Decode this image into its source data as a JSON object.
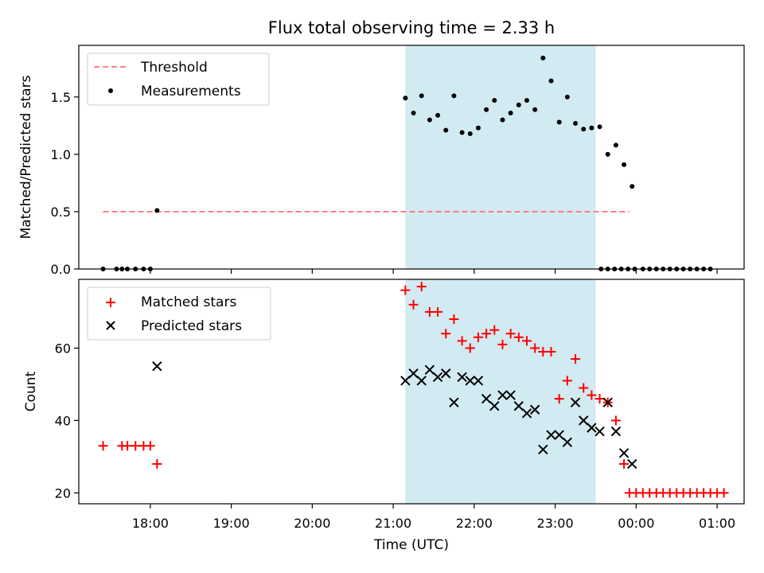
{
  "chart_data": [
    {
      "type": "scatter",
      "title": "Flux total observing time = 2.33 h",
      "xlabel": "",
      "ylabel": "Matched/Predicted stars",
      "xlim": [
        "17:07",
        "01:20"
      ],
      "ylim": [
        0,
        1.95
      ],
      "yticks": [
        "0.0",
        "0.5",
        "1.0",
        "1.5"
      ],
      "highlight_span": [
        "21:09",
        "23:30"
      ],
      "colors": {
        "span": "#add8e6",
        "threshold": "#ff8080",
        "points": "#000000"
      },
      "legend": {
        "placement": "upper-left",
        "entries": [
          "Threshold",
          "Measurements"
        ]
      },
      "threshold": {
        "name": "Threshold",
        "x_range": [
          "17:25",
          "23:55"
        ],
        "y": 0.5
      },
      "series": [
        {
          "name": "Measurements",
          "points": [
            [
              "17:25",
              0.0
            ],
            [
              "17:35",
              0.0
            ],
            [
              "17:39",
              0.0
            ],
            [
              "17:43",
              0.0
            ],
            [
              "17:49",
              0.0
            ],
            [
              "17:55",
              0.0
            ],
            [
              "18:00",
              0.0
            ],
            [
              "18:05",
              0.51
            ],
            [
              "21:09",
              1.49
            ],
            [
              "21:15",
              1.36
            ],
            [
              "21:21",
              1.51
            ],
            [
              "21:27",
              1.3
            ],
            [
              "21:33",
              1.34
            ],
            [
              "21:39",
              1.21
            ],
            [
              "21:45",
              1.51
            ],
            [
              "21:51",
              1.19
            ],
            [
              "21:57",
              1.18
            ],
            [
              "22:03",
              1.23
            ],
            [
              "22:09",
              1.39
            ],
            [
              "22:15",
              1.47
            ],
            [
              "22:21",
              1.3
            ],
            [
              "22:27",
              1.36
            ],
            [
              "22:33",
              1.43
            ],
            [
              "22:39",
              1.47
            ],
            [
              "22:45",
              1.39
            ],
            [
              "22:51",
              1.84
            ],
            [
              "22:57",
              1.64
            ],
            [
              "23:03",
              1.28
            ],
            [
              "23:09",
              1.5
            ],
            [
              "23:15",
              1.27
            ],
            [
              "23:21",
              1.22
            ],
            [
              "23:27",
              1.23
            ],
            [
              "23:33",
              1.24
            ],
            [
              "23:39",
              1.0
            ],
            [
              "23:45",
              1.08
            ],
            [
              "23:51",
              0.91
            ],
            [
              "23:57",
              0.72
            ],
            [
              "23:34",
              0.0
            ],
            [
              "23:39",
              0.0
            ],
            [
              "23:44",
              0.0
            ],
            [
              "23:49",
              0.0
            ],
            [
              "23:54",
              0.0
            ],
            [
              "23:59",
              0.0
            ],
            [
              "00:05",
              0.0
            ],
            [
              "00:10",
              0.0
            ],
            [
              "00:15",
              0.0
            ],
            [
              "00:20",
              0.0
            ],
            [
              "00:25",
              0.0
            ],
            [
              "00:30",
              0.0
            ],
            [
              "00:35",
              0.0
            ],
            [
              "00:40",
              0.0
            ],
            [
              "00:45",
              0.0
            ],
            [
              "00:50",
              0.0
            ],
            [
              "00:55",
              0.0
            ]
          ]
        }
      ]
    },
    {
      "type": "scatter",
      "title": "",
      "xlabel": "Time (UTC)",
      "ylabel": "Count",
      "xlim": [
        "17:07",
        "01:20"
      ],
      "ylim": [
        17,
        79
      ],
      "yticks": [
        "20",
        "40",
        "60"
      ],
      "xticks": [
        "18:00",
        "19:00",
        "20:00",
        "21:00",
        "22:00",
        "23:00",
        "00:00",
        "01:00"
      ],
      "highlight_span": [
        "21:09",
        "23:30"
      ],
      "colors": {
        "span": "#add8e6",
        "matched": "#ff0000",
        "predicted": "#000000"
      },
      "legend": {
        "placement": "upper-left",
        "entries": [
          "Matched stars",
          "Predicted stars"
        ]
      },
      "series": [
        {
          "name": "Matched stars",
          "marker": "plus",
          "points": [
            [
              "17:25",
              33
            ],
            [
              "17:39",
              33
            ],
            [
              "17:43",
              33
            ],
            [
              "17:49",
              33
            ],
            [
              "17:55",
              33
            ],
            [
              "18:00",
              33
            ],
            [
              "18:05",
              28
            ],
            [
              "21:09",
              76
            ],
            [
              "21:15",
              72
            ],
            [
              "21:21",
              77
            ],
            [
              "21:27",
              70
            ],
            [
              "21:33",
              70
            ],
            [
              "21:39",
              64
            ],
            [
              "21:45",
              68
            ],
            [
              "21:51",
              62
            ],
            [
              "21:57",
              60
            ],
            [
              "22:03",
              63
            ],
            [
              "22:09",
              64
            ],
            [
              "22:15",
              65
            ],
            [
              "22:21",
              61
            ],
            [
              "22:27",
              64
            ],
            [
              "22:33",
              63
            ],
            [
              "22:39",
              62
            ],
            [
              "22:45",
              60
            ],
            [
              "22:51",
              59
            ],
            [
              "22:57",
              59
            ],
            [
              "23:03",
              46
            ],
            [
              "23:09",
              51
            ],
            [
              "23:15",
              57
            ],
            [
              "23:21",
              49
            ],
            [
              "23:27",
              47
            ],
            [
              "23:33",
              46
            ],
            [
              "23:39",
              45
            ],
            [
              "23:45",
              40
            ],
            [
              "23:51",
              28
            ],
            [
              "23:55",
              20
            ],
            [
              "00:00",
              20
            ],
            [
              "00:05",
              20
            ],
            [
              "00:10",
              20
            ],
            [
              "00:15",
              20
            ],
            [
              "00:20",
              20
            ],
            [
              "00:25",
              20
            ],
            [
              "00:30",
              20
            ],
            [
              "00:35",
              20
            ],
            [
              "00:40",
              20
            ],
            [
              "00:45",
              20
            ],
            [
              "00:50",
              20
            ],
            [
              "00:55",
              20
            ],
            [
              "01:00",
              20
            ],
            [
              "01:05",
              20
            ]
          ]
        },
        {
          "name": "Predicted stars",
          "marker": "x",
          "points": [
            [
              "18:05",
              55
            ],
            [
              "21:09",
              51
            ],
            [
              "21:15",
              53
            ],
            [
              "21:21",
              51
            ],
            [
              "21:27",
              54
            ],
            [
              "21:33",
              52
            ],
            [
              "21:39",
              53
            ],
            [
              "21:45",
              45
            ],
            [
              "21:51",
              52
            ],
            [
              "21:57",
              51
            ],
            [
              "22:03",
              51
            ],
            [
              "22:09",
              46
            ],
            [
              "22:15",
              44
            ],
            [
              "22:21",
              47
            ],
            [
              "22:27",
              47
            ],
            [
              "22:33",
              44
            ],
            [
              "22:39",
              42
            ],
            [
              "22:45",
              43
            ],
            [
              "22:51",
              32
            ],
            [
              "22:57",
              36
            ],
            [
              "23:03",
              36
            ],
            [
              "23:09",
              34
            ],
            [
              "23:15",
              45
            ],
            [
              "23:21",
              40
            ],
            [
              "23:27",
              38
            ],
            [
              "23:33",
              37
            ],
            [
              "23:39",
              45
            ],
            [
              "23:45",
              37
            ],
            [
              "23:51",
              31
            ],
            [
              "23:57",
              28
            ]
          ]
        }
      ]
    }
  ]
}
